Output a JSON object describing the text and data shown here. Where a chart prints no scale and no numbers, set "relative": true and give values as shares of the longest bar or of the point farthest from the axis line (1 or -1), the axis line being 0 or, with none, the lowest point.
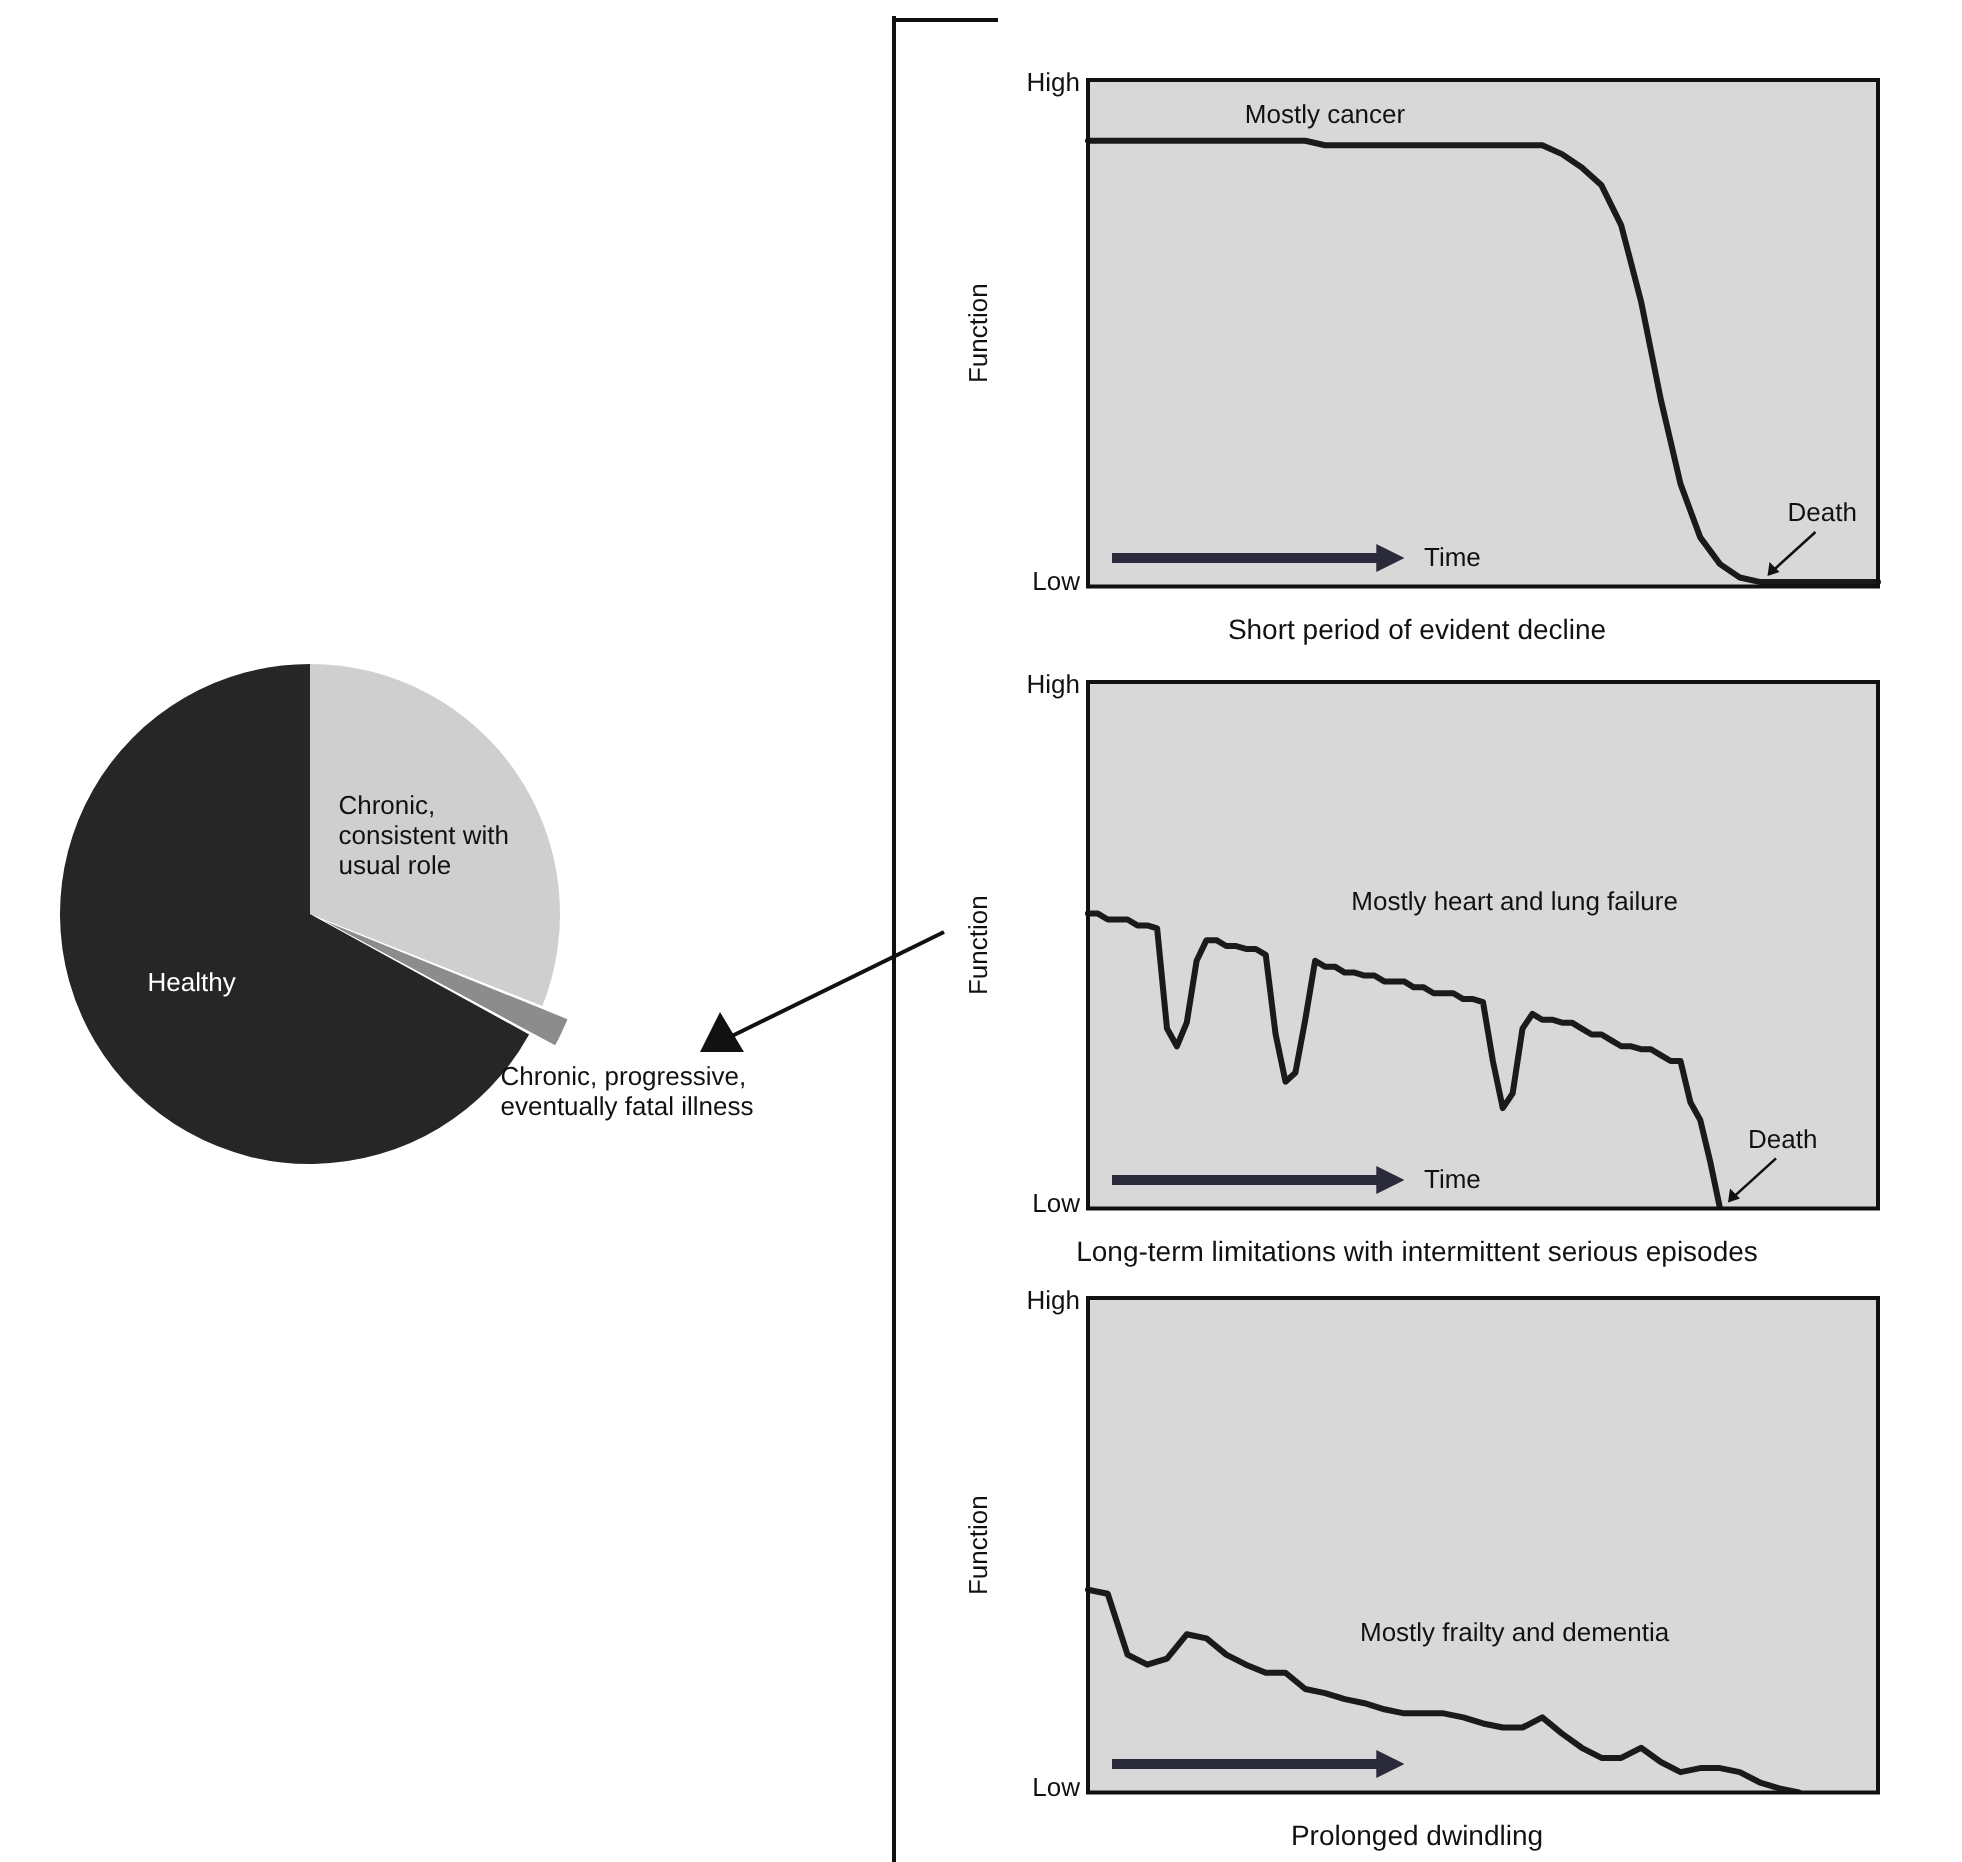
{
  "chart_data": [
    {
      "type": "pie",
      "categories": [
        "Chronic, consistent with usual role",
        "Chronic, progressive, eventually fatal illness",
        "Healthy"
      ],
      "values": [
        31,
        2,
        67
      ],
      "colors": [
        "#cfcfcf",
        "#8c8c8c",
        "#262626"
      ]
    },
    {
      "type": "line",
      "relative": true,
      "title": "Short period of evident decline",
      "ylabel": "Function",
      "xlabel": "Time",
      "categories": [
        null,
        null,
        null,
        null,
        null,
        null,
        null,
        null,
        null,
        null,
        null,
        null,
        null,
        null,
        null,
        null,
        null,
        null,
        null,
        null,
        null,
        null,
        null,
        null,
        null,
        null,
        null,
        null,
        null,
        null,
        null,
        null,
        null,
        null,
        null,
        null,
        null,
        null,
        null,
        null,
        null
      ],
      "tick_labels": false,
      "series": [
        {
          "name": "Mostly cancer",
          "color": "#1a1a1a",
          "values": [
            1,
            1,
            1,
            1,
            1,
            1,
            1,
            1,
            1,
            1,
            1,
            1,
            0.99,
            0.99,
            0.99,
            0.99,
            0.99,
            0.99,
            0.99,
            0.99,
            0.99,
            0.99,
            0.99,
            0.99,
            0.97,
            0.94,
            0.9,
            0.81,
            0.64,
            0.42,
            0.23,
            0.11,
            0.05,
            0.02,
            0.01,
            0.01,
            0.01,
            0.01,
            0.01,
            0.01,
            0.01
          ]
        }
      ],
      "annotations": [
        "Death",
        "High",
        "Low"
      ]
    },
    {
      "type": "line",
      "relative": true,
      "title": "Long-term limitations with intermittent serious episodes",
      "ylabel": "Function",
      "xlabel": "Time",
      "categories": [
        null,
        null,
        null,
        null,
        null,
        null,
        null,
        null,
        null,
        null,
        null,
        null,
        null,
        null,
        null,
        null,
        null,
        null,
        null,
        null,
        null,
        null,
        null,
        null,
        null,
        null,
        null,
        null,
        null,
        null,
        null,
        null,
        null,
        null,
        null,
        null,
        null,
        null,
        null,
        null,
        null,
        null,
        null,
        null,
        null,
        null,
        null,
        null,
        null,
        null,
        null,
        null,
        null,
        null,
        null,
        null,
        null,
        null,
        null,
        null,
        null,
        null,
        null,
        null,
        null,
        null,
        null,
        null,
        null,
        null,
        null,
        null,
        null,
        null,
        null,
        null,
        null,
        null,
        null,
        null,
        null
      ],
      "tick_labels": false,
      "series": [
        {
          "name": "Mostly heart and lung failure",
          "color": "#1a1a1a",
          "values": [
            1,
            1,
            0.98,
            0.98,
            0.98,
            0.96,
            0.96,
            0.95,
            0.61,
            0.55,
            0.63,
            0.84,
            0.91,
            0.91,
            0.89,
            0.89,
            0.88,
            0.88,
            0.86,
            0.59,
            0.43,
            0.46,
            0.64,
            0.84,
            0.82,
            0.82,
            0.8,
            0.8,
            0.79,
            0.79,
            0.77,
            0.77,
            0.77,
            0.75,
            0.75,
            0.73,
            0.73,
            0.73,
            0.71,
            0.71,
            0.7,
            0.5,
            0.34,
            0.39,
            0.61,
            0.66,
            0.64,
            0.64,
            0.63,
            0.63,
            0.61,
            0.59,
            0.59,
            0.57,
            0.55,
            0.55,
            0.54,
            0.54,
            0.52,
            0.5,
            0.5,
            0.36,
            0.3,
            0.16,
            0,
            null,
            null,
            null,
            null,
            null,
            null,
            null,
            null,
            null,
            null,
            null,
            null,
            null,
            null,
            null,
            null
          ]
        }
      ],
      "annotations": [
        "Death",
        "High",
        "Low"
      ]
    },
    {
      "type": "line",
      "relative": true,
      "title": "Prolonged dwindling",
      "ylabel": "Function",
      "categories": [
        null,
        null,
        null,
        null,
        null,
        null,
        null,
        null,
        null,
        null,
        null,
        null,
        null,
        null,
        null,
        null,
        null,
        null,
        null,
        null,
        null,
        null,
        null,
        null,
        null,
        null,
        null,
        null,
        null,
        null,
        null,
        null,
        null,
        null,
        null,
        null,
        null,
        null,
        null,
        null,
        null
      ],
      "tick_labels": false,
      "series": [
        {
          "name": "Mostly frailty and dementia",
          "color": "#1a1a1a",
          "values": [
            1,
            0.98,
            0.68,
            0.63,
            0.66,
            0.78,
            0.76,
            0.68,
            0.63,
            0.59,
            0.59,
            0.51,
            0.49,
            0.46,
            0.44,
            0.41,
            0.39,
            0.39,
            0.39,
            0.37,
            0.34,
            0.32,
            0.32,
            0.37,
            0.29,
            0.22,
            0.17,
            0.17,
            0.22,
            0.15,
            0.1,
            0.12,
            0.12,
            0.1,
            0.05,
            0.02,
            0,
            null,
            null,
            null,
            null
          ]
        }
      ],
      "annotations": [
        "High",
        "Low"
      ]
    }
  ]
}
